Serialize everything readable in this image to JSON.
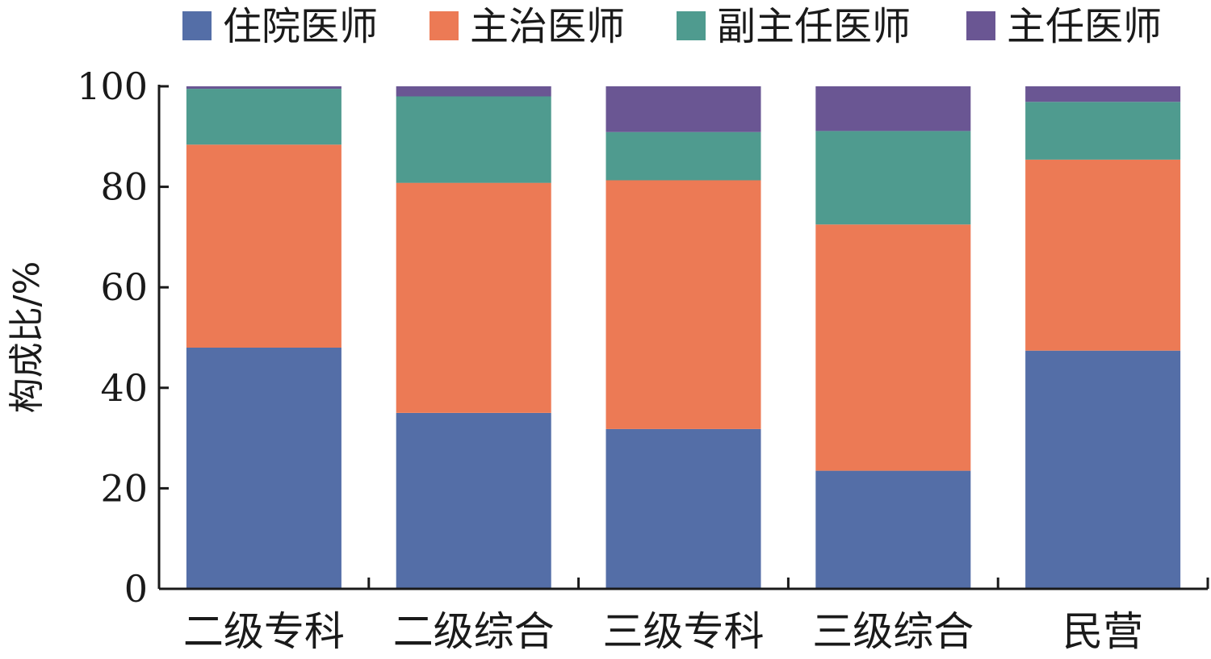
{
  "chart_data": {
    "type": "bar",
    "stacked": true,
    "title": "",
    "xlabel": "",
    "ylabel": "构成比/%",
    "ylim": [
      0,
      100
    ],
    "yticks": [
      0,
      20,
      40,
      60,
      80,
      100
    ],
    "legend_position": "top",
    "categories": [
      "二级专科",
      "二级综合",
      "三级专科",
      "三级综合",
      "民营"
    ],
    "series": [
      {
        "name": "住院医师",
        "color": "#546ea7",
        "values": [
          48.0,
          35.0,
          31.8,
          23.5,
          47.4
        ]
      },
      {
        "name": "主治医师",
        "color": "#ec7a55",
        "values": [
          40.4,
          45.8,
          49.5,
          49.0,
          38.0
        ]
      },
      {
        "name": "副主任医师",
        "color": "#4f9b8f",
        "values": [
          11.1,
          17.2,
          9.6,
          18.6,
          11.5
        ]
      },
      {
        "name": "主任医师",
        "color": "#6a5693",
        "values": [
          0.5,
          2.0,
          9.1,
          8.9,
          3.1
        ]
      }
    ]
  }
}
